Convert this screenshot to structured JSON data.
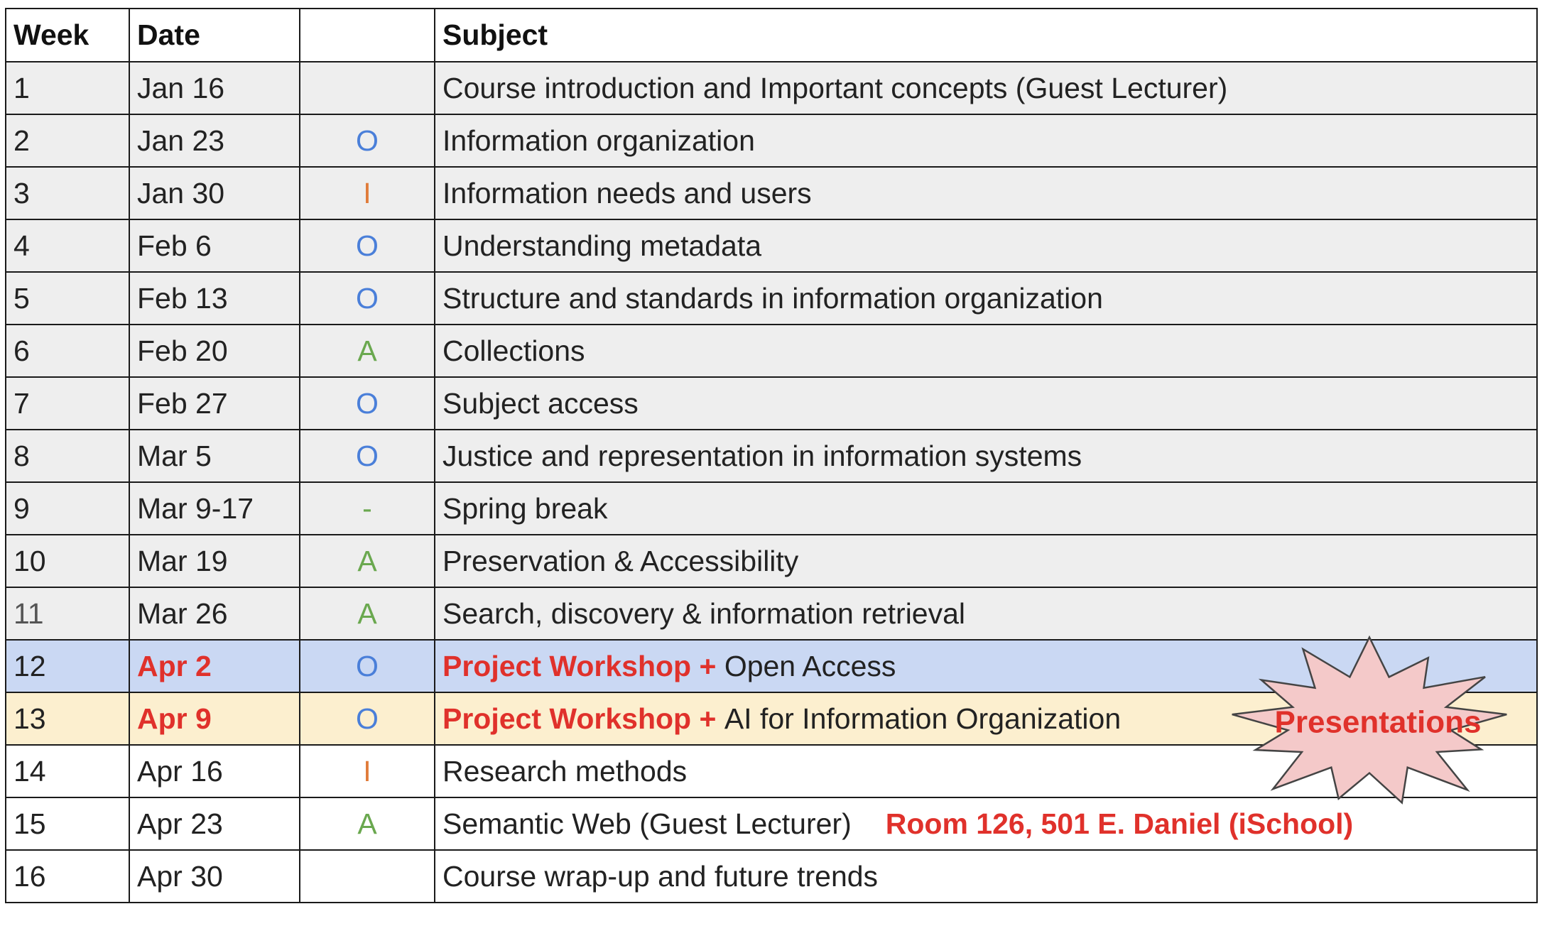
{
  "table": {
    "headers": {
      "week": "Week",
      "date": "Date",
      "code": "",
      "subject": "Subject"
    },
    "rows": [
      {
        "week": "1",
        "date": "Jan 16",
        "code": "",
        "subject_prefix": "",
        "subject": "Course introduction and Important concepts (Guest Lecturer)",
        "note": ""
      },
      {
        "week": "2",
        "date": "Jan 23",
        "code": "O",
        "subject_prefix": "",
        "subject": "Information organization",
        "note": ""
      },
      {
        "week": "3",
        "date": "Jan 30",
        "code": "I",
        "subject_prefix": "",
        "subject": "Information needs and users",
        "note": ""
      },
      {
        "week": "4",
        "date": "Feb 6",
        "code": "O",
        "subject_prefix": "",
        "subject": "Understanding metadata",
        "note": ""
      },
      {
        "week": "5",
        "date": "Feb 13",
        "code": "O",
        "subject_prefix": "",
        "subject": "Structure and standards in information organization",
        "note": ""
      },
      {
        "week": "6",
        "date": "Feb 20",
        "code": "A",
        "subject_prefix": "",
        "subject": "Collections",
        "note": ""
      },
      {
        "week": "7",
        "date": "Feb 27",
        "code": "O",
        "subject_prefix": "",
        "subject": "Subject access",
        "note": ""
      },
      {
        "week": "8",
        "date": "Mar 5",
        "code": "O",
        "subject_prefix": "",
        "subject": "Justice and representation in information systems",
        "note": ""
      },
      {
        "week": "9",
        "date": "Mar 9-17",
        "code": "-",
        "subject_prefix": "",
        "subject": "Spring break",
        "note": ""
      },
      {
        "week": "10",
        "date": "Mar 19",
        "code": "A",
        "subject_prefix": "",
        "subject": "Preservation & Accessibility",
        "note": ""
      },
      {
        "week": "11",
        "date": "Mar 26",
        "code": "A",
        "subject_prefix": "",
        "subject": "Search, discovery & information retrieval",
        "note": ""
      },
      {
        "week": "12",
        "date": "Apr 2",
        "code": "O",
        "subject_prefix": "Project Workshop + ",
        "subject": "Open Access",
        "note": ""
      },
      {
        "week": "13",
        "date": "Apr 9",
        "code": "O",
        "subject_prefix": "Project Workshop + ",
        "subject": "AI for Information Organization",
        "note": ""
      },
      {
        "week": "14",
        "date": "Apr 16",
        "code": "I",
        "subject_prefix": "",
        "subject": "Research methods",
        "note": ""
      },
      {
        "week": "15",
        "date": "Apr 23",
        "code": "A",
        "subject_prefix": "",
        "subject": "Semantic Web (Guest Lecturer)",
        "note": "Room 126, 501 E. Daniel (iSchool)"
      },
      {
        "week": "16",
        "date": "Apr 30",
        "code": "",
        "subject_prefix": "",
        "subject": "Course wrap-up and future trends",
        "note": ""
      }
    ]
  },
  "callout": {
    "label": "Presentations",
    "shape": "starburst",
    "fill": "#f4c9c9",
    "text_color": "#e0312b"
  },
  "colors": {
    "code_O": "#4a7fd9",
    "code_I": "#e07b39",
    "code_A": "#6aa84f",
    "code_dash": "#6aa84f",
    "row_shade_gray": "#eeeeee",
    "row_highlight_blue": "#cad8f3",
    "row_highlight_yellow": "#fcefcf",
    "accent_red": "#e0312b"
  }
}
